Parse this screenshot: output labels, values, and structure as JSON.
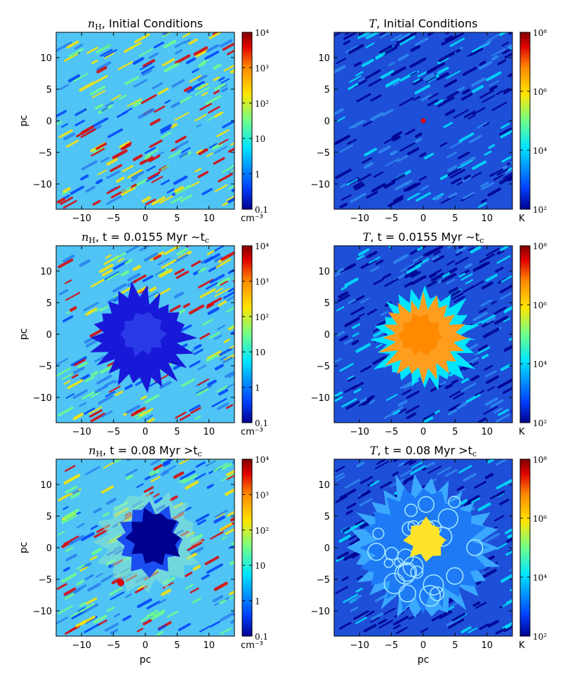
{
  "chart_data": [
    {
      "type": "heatmap",
      "quantity": "n_H",
      "title": {
        "sym": "n",
        "sym_sub": "H",
        "text": ", Initial Conditions"
      },
      "xlabel": "",
      "ylabel": "pc",
      "xlim": [
        -14,
        14
      ],
      "ylim": [
        -14,
        14
      ],
      "xticks": [
        "−10",
        "−5",
        "0",
        "5",
        "10"
      ],
      "yticks": [
        "10",
        "5",
        "0",
        "−5",
        "−10"
      ],
      "colorbar": {
        "scale": "log",
        "range": [
          0.1,
          10000
        ],
        "ticks": [
          "10⁴",
          "10³",
          "10²",
          "10",
          "1",
          "0.1"
        ],
        "unit": "cm⁻³",
        "colormap": "jet"
      },
      "snapshot": "initial",
      "bubble": "none"
    },
    {
      "type": "heatmap",
      "quantity": "T",
      "title": {
        "sym": "T",
        "sym_sub": "",
        "text": ", Initial Conditions"
      },
      "xlabel": "",
      "ylabel": "",
      "xlim": [
        -14,
        14
      ],
      "ylim": [
        -14,
        14
      ],
      "xticks": [
        "−10",
        "−5",
        "0",
        "5",
        "10"
      ],
      "yticks": [
        "10",
        "5",
        "0",
        "−5",
        "−10"
      ],
      "colorbar": {
        "scale": "log",
        "range": [
          100,
          100000000
        ],
        "ticks": [
          "10⁸",
          "10⁶",
          "10⁴",
          "10²"
        ],
        "unit": "K",
        "colormap": "jet"
      },
      "snapshot": "initial",
      "bubble": "point"
    },
    {
      "type": "heatmap",
      "quantity": "n_H",
      "title": {
        "sym": "n",
        "sym_sub": "H",
        "text": ", t = 0.0155 Myr ∼t",
        "tail_sub": "c"
      },
      "xlabel": "",
      "ylabel": "pc",
      "xlim": [
        -14,
        14
      ],
      "ylim": [
        -14,
        14
      ],
      "xticks": [
        "−10",
        "−5",
        "0",
        "5",
        "10"
      ],
      "yticks": [
        "10",
        "5",
        "0",
        "−5",
        "−10"
      ],
      "colorbar": {
        "scale": "log",
        "range": [
          0.1,
          10000
        ],
        "ticks": [
          "10⁴",
          "10³",
          "10²",
          "10",
          "1",
          "0.1"
        ],
        "unit": "cm⁻³",
        "colormap": "jet"
      },
      "snapshot": "t=0.0155 Myr",
      "bubble": "ragged"
    },
    {
      "type": "heatmap",
      "quantity": "T",
      "title": {
        "sym": "T",
        "sym_sub": "",
        "text": ", t = 0.0155 Myr ∼t",
        "tail_sub": "c"
      },
      "xlabel": "",
      "ylabel": "",
      "xlim": [
        -14,
        14
      ],
      "ylim": [
        -14,
        14
      ],
      "xticks": [
        "−10",
        "−5",
        "0",
        "5",
        "10"
      ],
      "yticks": [
        "10",
        "5",
        "0",
        "−5",
        "−10"
      ],
      "colorbar": {
        "scale": "log",
        "range": [
          100,
          100000000
        ],
        "ticks": [
          "10⁸",
          "10⁶",
          "10⁴",
          "10²"
        ],
        "unit": "K",
        "colormap": "jet"
      },
      "snapshot": "t=0.0155 Myr",
      "bubble": "hot-ragged"
    },
    {
      "type": "heatmap",
      "quantity": "n_H",
      "title": {
        "sym": "n",
        "sym_sub": "H",
        "text": ", t = 0.08 Myr >t",
        "tail_sub": "c"
      },
      "xlabel": "pc",
      "ylabel": "pc",
      "xlim": [
        -14,
        14
      ],
      "ylim": [
        -14,
        14
      ],
      "xticks": [
        "−10",
        "−5",
        "0",
        "5",
        "10"
      ],
      "yticks": [
        "10",
        "5",
        "0",
        "−5",
        "−10"
      ],
      "colorbar": {
        "scale": "log",
        "range": [
          0.1,
          10000
        ],
        "ticks": [
          "10⁴",
          "10³",
          "10²",
          "10",
          "1",
          "0.1"
        ],
        "unit": "cm⁻³",
        "colormap": "jet"
      },
      "snapshot": "t=0.08 Myr",
      "bubble": "cavity"
    },
    {
      "type": "heatmap",
      "quantity": "T",
      "title": {
        "sym": "T",
        "sym_sub": "",
        "text": ", t = 0.08 Myr >t",
        "tail_sub": "c"
      },
      "xlabel": "pc",
      "ylabel": "",
      "xlim": [
        -14,
        14
      ],
      "ylim": [
        -14,
        14
      ],
      "xticks": [
        "−10",
        "−5",
        "0",
        "5",
        "10"
      ],
      "yticks": [
        "10",
        "5",
        "0",
        "−5",
        "−10"
      ],
      "colorbar": {
        "scale": "log",
        "range": [
          100,
          100000000
        ],
        "ticks": [
          "10⁸",
          "10⁶",
          "10⁴",
          "10²"
        ],
        "unit": "K",
        "colormap": "jet"
      },
      "snapshot": "t=0.08 Myr",
      "bubble": "shell"
    }
  ],
  "colors": {
    "jet_dark_blue": "#00008f",
    "jet_blue": "#0040ff",
    "jet_cyan": "#00e5ff",
    "jet_green": "#70ff8a",
    "jet_yellow": "#ffe600",
    "jet_orange": "#ff8a00",
    "jet_red": "#e00000",
    "jet_dark_red": "#800000",
    "density_background": "#4fc4f5",
    "temperature_background": "#1e4fd8"
  }
}
